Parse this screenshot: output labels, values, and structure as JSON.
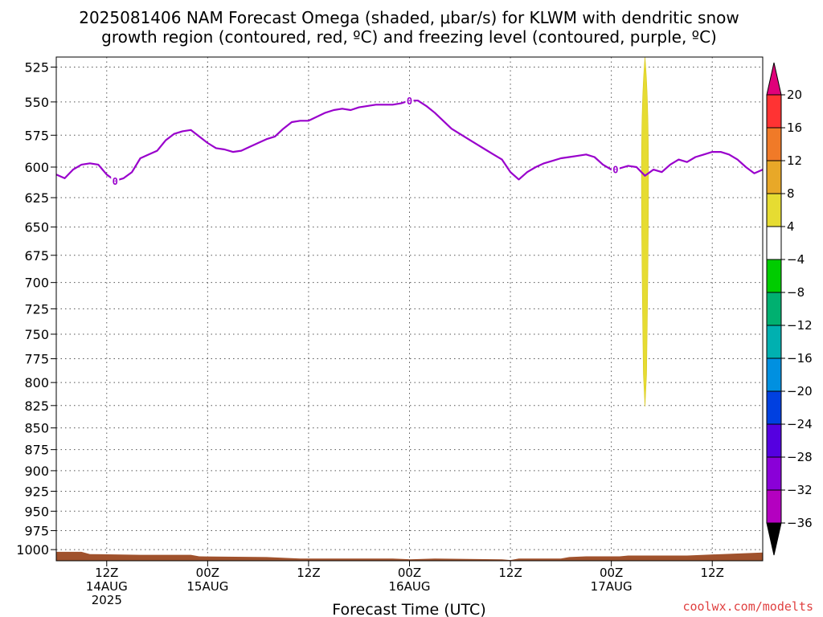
{
  "title": {
    "line1": "2025081406 NAM Forecast Omega (shaded, μbar/s) for KLWM with dendritic snow",
    "line2": "growth region (contoured, red, ºC) and freezing level (contoured, purple, ºC)"
  },
  "xlabel": "Forecast Time (UTC)",
  "credit": "coolwx.com/modelts",
  "colors": {
    "freezing_line": "#9900cc",
    "terrain": "#a0522d",
    "credit": "#e04040",
    "omega_patch": "#e6dc32"
  },
  "chart_data": {
    "type": "heatmap",
    "title": "2025081406 NAM Forecast Omega (shaded, μbar/s) for KLWM with dendritic snow growth region (contoured, red, ºC) and freezing level (contoured, purple, ºC)",
    "xlabel": "Forecast Time (UTC)",
    "ylabel": "",
    "y_ticks": [
      525,
      550,
      575,
      600,
      625,
      650,
      675,
      700,
      725,
      750,
      775,
      800,
      825,
      850,
      875,
      900,
      925,
      950,
      975,
      1000
    ],
    "ylim": [
      1015,
      518
    ],
    "xlim_hours": [
      0,
      84
    ],
    "x_ticks": [
      {
        "hour": 6,
        "label": "12Z",
        "sub1": "14AUG",
        "sub2": "2025"
      },
      {
        "hour": 18,
        "label": "00Z",
        "sub1": "15AUG",
        "sub2": ""
      },
      {
        "hour": 30,
        "label": "12Z",
        "sub1": "",
        "sub2": ""
      },
      {
        "hour": 42,
        "label": "00Z",
        "sub1": "16AUG",
        "sub2": ""
      },
      {
        "hour": 54,
        "label": "12Z",
        "sub1": "",
        "sub2": ""
      },
      {
        "hour": 66,
        "label": "00Z",
        "sub1": "17AUG",
        "sub2": ""
      },
      {
        "hour": 78,
        "label": "12Z",
        "sub1": "",
        "sub2": ""
      }
    ],
    "grid": true,
    "freezing_level": {
      "label": "0",
      "label_hours": [
        7,
        42,
        66.5
      ],
      "points": [
        [
          0,
          606
        ],
        [
          1,
          609
        ],
        [
          2,
          602
        ],
        [
          3,
          598
        ],
        [
          4,
          597
        ],
        [
          5,
          598
        ],
        [
          6,
          606
        ],
        [
          7,
          611
        ],
        [
          8,
          609
        ],
        [
          9,
          604
        ],
        [
          10,
          593
        ],
        [
          11,
          590
        ],
        [
          12,
          587
        ],
        [
          13,
          579
        ],
        [
          14,
          574
        ],
        [
          15,
          572
        ],
        [
          16,
          571
        ],
        [
          17,
          576
        ],
        [
          18,
          581
        ],
        [
          19,
          585
        ],
        [
          20,
          586
        ],
        [
          21,
          588
        ],
        [
          22,
          587
        ],
        [
          23,
          584
        ],
        [
          24,
          581
        ],
        [
          25,
          578
        ],
        [
          26,
          576
        ],
        [
          27,
          570
        ],
        [
          28,
          565
        ],
        [
          29,
          564
        ],
        [
          30,
          564
        ],
        [
          31,
          561
        ],
        [
          32,
          558
        ],
        [
          33,
          556
        ],
        [
          34,
          555
        ],
        [
          35,
          556
        ],
        [
          36,
          554
        ],
        [
          37,
          553
        ],
        [
          38,
          552
        ],
        [
          39,
          552
        ],
        [
          40,
          552
        ],
        [
          41,
          551
        ],
        [
          42,
          549
        ],
        [
          43,
          549
        ],
        [
          44,
          553
        ],
        [
          45,
          558
        ],
        [
          46,
          564
        ],
        [
          47,
          570
        ],
        [
          48,
          574
        ],
        [
          49,
          578
        ],
        [
          50,
          582
        ],
        [
          51,
          586
        ],
        [
          52,
          590
        ],
        [
          53,
          594
        ],
        [
          54,
          604
        ],
        [
          55,
          610
        ],
        [
          56,
          604
        ],
        [
          57,
          600
        ],
        [
          58,
          597
        ],
        [
          59,
          595
        ],
        [
          60,
          593
        ],
        [
          61,
          592
        ],
        [
          62,
          591
        ],
        [
          63,
          590
        ],
        [
          64,
          592
        ],
        [
          65,
          598
        ],
        [
          66,
          602
        ],
        [
          67,
          601
        ],
        [
          68,
          599
        ],
        [
          69,
          600
        ],
        [
          70,
          607
        ],
        [
          71,
          602
        ],
        [
          72,
          604
        ],
        [
          73,
          598
        ],
        [
          74,
          594
        ],
        [
          75,
          596
        ],
        [
          76,
          592
        ],
        [
          77,
          590
        ],
        [
          78,
          588
        ],
        [
          79,
          588
        ],
        [
          80,
          590
        ],
        [
          81,
          594
        ],
        [
          82,
          600
        ],
        [
          83,
          605
        ],
        [
          84,
          602
        ]
      ]
    },
    "omega_shading": {
      "hour": 70,
      "value_range": [
        4,
        8
      ],
      "top_hpa": 518,
      "bottom_hpa": 826
    },
    "terrain_hpa": [
      [
        0,
        1003
      ],
      [
        3,
        1003
      ],
      [
        4,
        1006
      ],
      [
        10,
        1007
      ],
      [
        16,
        1007
      ],
      [
        17,
        1009
      ],
      [
        25,
        1010
      ],
      [
        29,
        1012
      ],
      [
        35,
        1012
      ],
      [
        40,
        1012
      ],
      [
        42,
        1013
      ],
      [
        45,
        1012
      ],
      [
        53,
        1013
      ],
      [
        54,
        1014
      ],
      [
        55,
        1012
      ],
      [
        60,
        1012
      ],
      [
        61,
        1010
      ],
      [
        63,
        1009
      ],
      [
        67,
        1009
      ],
      [
        68,
        1008
      ],
      [
        75,
        1008
      ],
      [
        77,
        1007
      ],
      [
        84,
        1004
      ]
    ],
    "colorbar": {
      "levels": [
        20,
        16,
        12,
        8,
        4,
        -4,
        -8,
        -12,
        -16,
        -20,
        -24,
        -28,
        -32,
        -36
      ],
      "colors": [
        "#e0007a",
        "#ff3333",
        "#f07a28",
        "#e8a828",
        "#e6dc32",
        "#ffffff",
        "#00cc00",
        "#00b070",
        "#00b0b0",
        "#0090e0",
        "#0040e0",
        "#5500e0",
        "#8a00d8",
        "#b400c0",
        "#a0a0a0",
        "#000000"
      ]
    }
  }
}
